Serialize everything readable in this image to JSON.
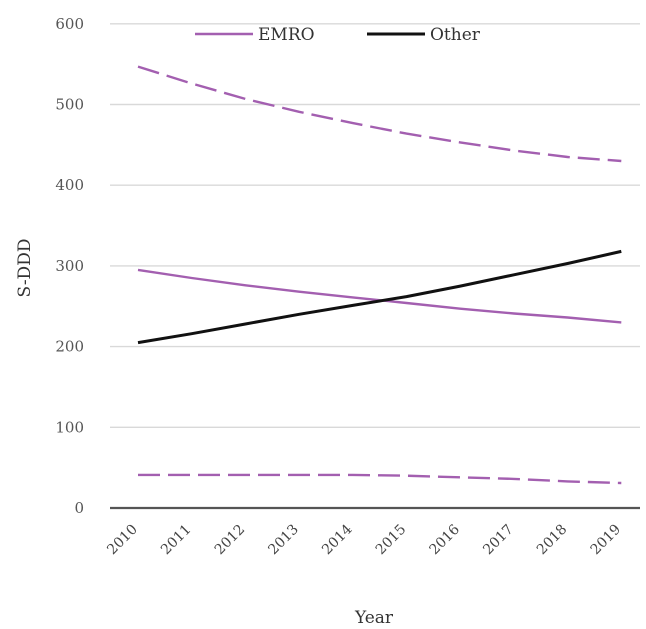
{
  "chart_data": {
    "type": "line",
    "x": [
      "2010",
      "2011",
      "2012",
      "2013",
      "2014",
      "2015",
      "2016",
      "2017",
      "2018",
      "2019"
    ],
    "xlabel": "Year",
    "ylabel": "S-DDD",
    "ylim": [
      0,
      600
    ],
    "yticks": [
      "0",
      "100",
      "200",
      "300",
      "400",
      "500",
      "600"
    ],
    "grid": true,
    "legend_position": "top",
    "legend": [
      {
        "name": "EMRO",
        "color": "#a35fb0"
      },
      {
        "name": "Other",
        "color": "#111111"
      }
    ],
    "series": [
      {
        "name": "EMRO",
        "color": "#a35fb0",
        "style": "solid",
        "values": [
          295,
          285,
          276,
          268,
          261,
          254,
          247,
          241,
          236,
          230
        ]
      },
      {
        "name": "Other",
        "color": "#111111",
        "style": "solid",
        "values": [
          205,
          216,
          228,
          240,
          251,
          262,
          275,
          289,
          303,
          318
        ]
      },
      {
        "style": "dashed",
        "color": "#a35fb0",
        "values": [
          547,
          526,
          507,
          491,
          477,
          464,
          453,
          443,
          435,
          430
        ]
      },
      {
        "style": "dashed",
        "color": "#a35fb0",
        "values": [
          41,
          41,
          41,
          41,
          41,
          40,
          38,
          36,
          33,
          31
        ]
      }
    ]
  }
}
